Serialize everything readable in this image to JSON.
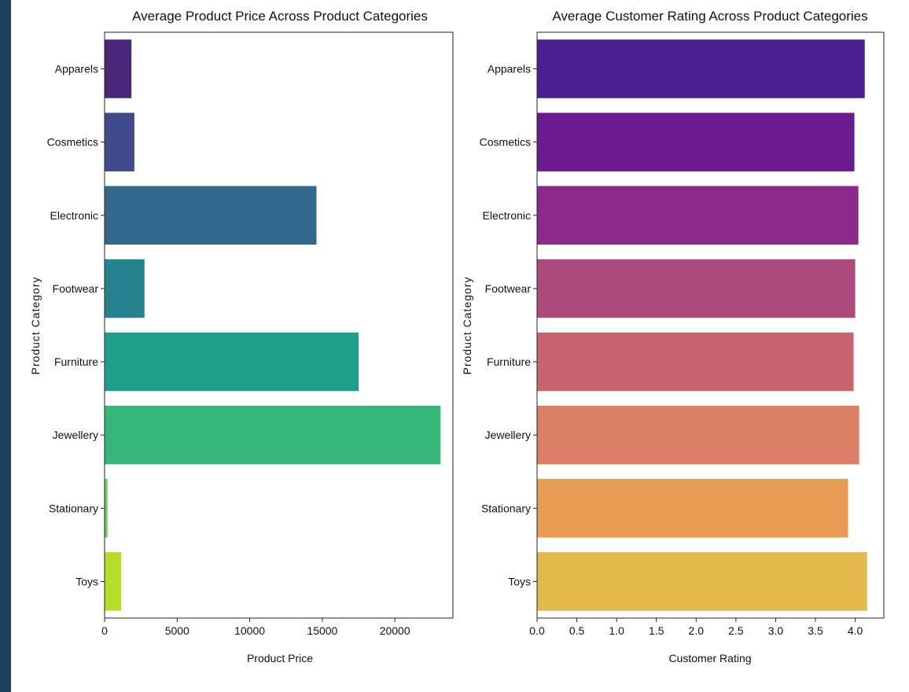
{
  "chart_data": [
    {
      "type": "bar",
      "orientation": "horizontal",
      "title": "Average Product Price Across Product Categories",
      "xlabel": "Product Price",
      "ylabel": "Product Category",
      "categories": [
        "Apparels",
        "Cosmetics",
        "Electronic",
        "Footwear",
        "Furniture",
        "Jewellery",
        "Stationary",
        "Toys"
      ],
      "values": [
        1850,
        2050,
        14600,
        2750,
        17500,
        23150,
        200,
        1150
      ],
      "xlim": [
        0,
        24000
      ],
      "xticks": [
        "0",
        "5000",
        "10000",
        "15000",
        "20000"
      ],
      "xtick_values": [
        0,
        5000,
        10000,
        15000,
        20000
      ],
      "colors": [
        "#482878",
        "#3e4a89",
        "#31688e",
        "#26828e",
        "#1f9e89",
        "#35b779",
        "#6ece58",
        "#b5de2b"
      ],
      "grid": false
    },
    {
      "type": "bar",
      "orientation": "horizontal",
      "title": "Average Customer Rating Across Product Categories",
      "xlabel": "Customer Rating",
      "ylabel": "Product Category",
      "categories": [
        "Apparels",
        "Cosmetics",
        "Electronic",
        "Footwear",
        "Furniture",
        "Jewellery",
        "Stationary",
        "Toys"
      ],
      "values": [
        4.12,
        3.99,
        4.04,
        4.0,
        3.98,
        4.05,
        3.91,
        4.15
      ],
      "xlim": [
        0,
        4.36
      ],
      "xticks": [
        "0.0",
        "0.5",
        "1.0",
        "1.5",
        "2.0",
        "2.5",
        "3.0",
        "3.5",
        "4.0"
      ],
      "xtick_values": [
        0,
        0.5,
        1.0,
        1.5,
        2.0,
        2.5,
        3.0,
        3.5,
        4.0
      ],
      "colors": [
        "#4a1f8f",
        "#6c1c90",
        "#8c2a8b",
        "#ac4a7e",
        "#c86470",
        "#db7f66",
        "#e89b52",
        "#e3b94c"
      ],
      "grid": false
    }
  ]
}
